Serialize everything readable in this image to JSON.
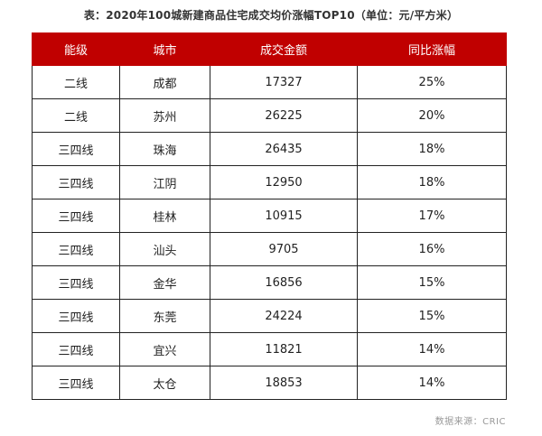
{
  "caption": "表：2020年100城新建商品住宅成交均价涨幅TOP10（单位：元/平方米）",
  "table": {
    "headers": [
      "能级",
      "城市",
      "成交金额",
      "同比涨幅"
    ],
    "rows": [
      [
        "二线",
        "成都",
        "17327",
        "25%"
      ],
      [
        "二线",
        "苏州",
        "26225",
        "20%"
      ],
      [
        "三四线",
        "珠海",
        "26435",
        "18%"
      ],
      [
        "三四线",
        "江阴",
        "12950",
        "18%"
      ],
      [
        "三四线",
        "桂林",
        "10915",
        "17%"
      ],
      [
        "三四线",
        "汕头",
        "9705",
        "16%"
      ],
      [
        "三四线",
        "金华",
        "16856",
        "15%"
      ],
      [
        "三四线",
        "东莞",
        "24224",
        "15%"
      ],
      [
        "三四线",
        "宜兴",
        "11821",
        "14%"
      ],
      [
        "三四线",
        "太仓",
        "18853",
        "14%"
      ]
    ]
  },
  "source": "数据来源：CRIC",
  "colors": {
    "header_background": "#c00000",
    "header_text": "#ffffff",
    "grid": "#222222",
    "source_text": "#999999"
  }
}
